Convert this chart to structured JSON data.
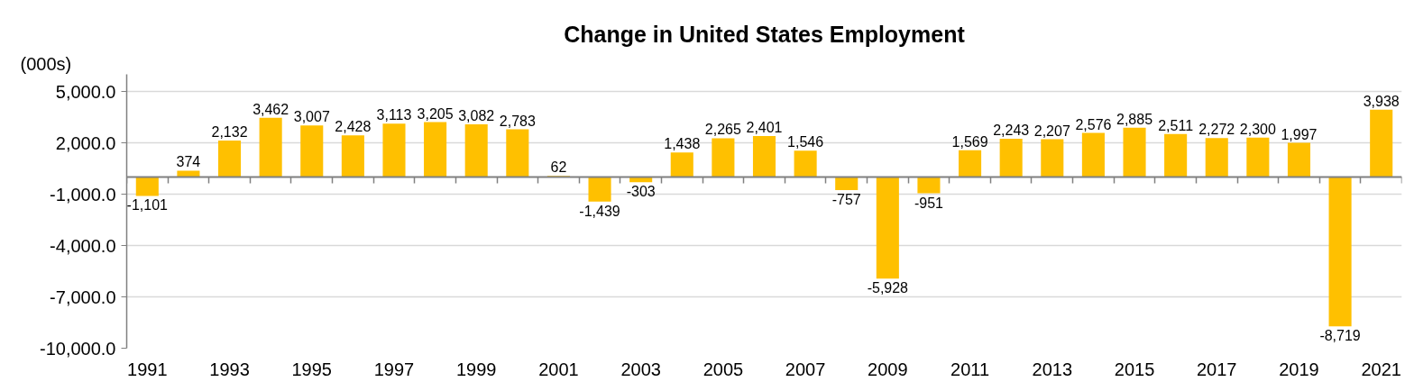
{
  "chart_data": {
    "type": "bar",
    "title": "Change in United States Employment",
    "ylabel": "(000s)",
    "categories": [
      "1991",
      null,
      "1993",
      null,
      "1995",
      null,
      "1997",
      null,
      "1999",
      null,
      "2001",
      null,
      "2003",
      null,
      "2005",
      null,
      "2007",
      null,
      "2009",
      null,
      "2011",
      null,
      "2013",
      null,
      "2015",
      null,
      "2017",
      null,
      "2019",
      null,
      "2021"
    ],
    "values": [
      -1101,
      374,
      2132,
      3462,
      3007,
      2428,
      3113,
      3205,
      3082,
      2783,
      62,
      -1439,
      -303,
      1438,
      2265,
      2401,
      1546,
      -757,
      -5928,
      -951,
      1569,
      2243,
      2207,
      2576,
      2885,
      2511,
      2272,
      2300,
      1997,
      -8719,
      3938
    ],
    "value_labels": [
      "-1,101",
      "374",
      "2,132",
      "3,462",
      "3,007",
      "2,428",
      "3,113",
      "3,205",
      "3,082",
      "2,783",
      "62",
      "-1,439",
      "-303",
      "1,438",
      "2,265",
      "2,401",
      "1,546",
      "-757",
      "-5,928",
      "-951",
      "1,569",
      "2,243",
      "2,207",
      "2,576",
      "2,885",
      "2,511",
      "2,272",
      "2,300",
      "1,997",
      "-8,719",
      "3,938"
    ],
    "color": "#ffc000",
    "ylim": [
      -10000,
      6000
    ],
    "yticks": [
      {
        "value": -10000,
        "label": "-10,000.0"
      },
      {
        "value": -7000,
        "label": "-7,000.0"
      },
      {
        "value": -4000,
        "label": "-4,000.0"
      },
      {
        "value": -1000,
        "label": "-1,000.0"
      },
      {
        "value": 2000,
        "label": "2,000.0"
      },
      {
        "value": 5000,
        "label": "5,000.0"
      }
    ],
    "grid": "y"
  }
}
